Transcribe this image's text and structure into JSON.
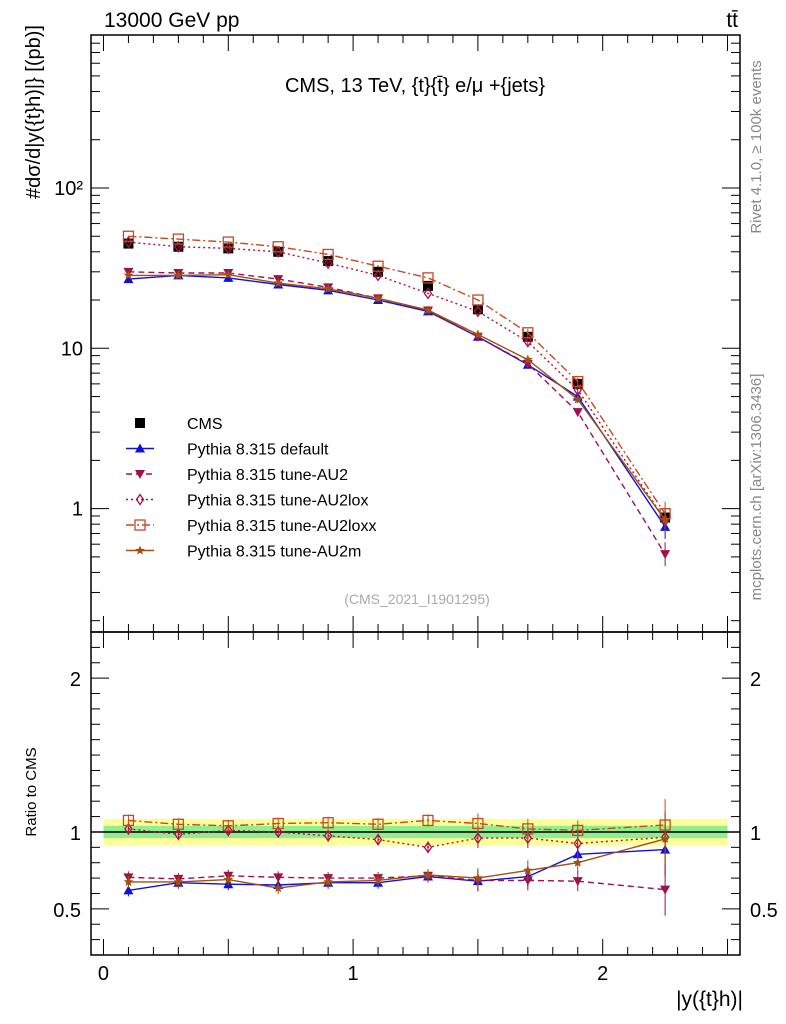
{
  "header": {
    "energy_label": "13000 GeV pp",
    "process_label": "tt̄",
    "rivet_label": "Rivet 4.1.0, ≥ 100k events",
    "mcplots_label": "mcplots.cern.ch [arXiv:1306.3436]"
  },
  "chart_data": [
    {
      "type": "line",
      "panel": "main",
      "title": "CMS, 13 TeV, {t}{t̄} e/μ +{jets}",
      "analysis_id": "(CMS_2021_I1901295)",
      "ylabel": "#dσ/d|y({t}h)|} [(pb)]",
      "yscale": "log",
      "ylim": [
        0.17,
        900
      ],
      "xlim": [
        -0.05,
        2.55
      ],
      "y_ticks": [
        1,
        10,
        100
      ],
      "y_tick_labels": [
        "1",
        "10",
        "10²"
      ],
      "x": [
        0.1,
        0.3,
        0.5,
        0.7,
        0.9,
        1.1,
        1.3,
        1.5,
        1.7,
        1.9,
        2.25
      ],
      "legend": [
        "CMS",
        "Pythia 8.315 default",
        "Pythia 8.315 tune-AU2",
        "Pythia 8.315 tune-AU2lox",
        "Pythia 8.315 tune-AU2loxx",
        "Pythia 8.315 tune-AU2m"
      ],
      "series": [
        {
          "name": "CMS",
          "color": "#000000",
          "marker": "square",
          "line": "none",
          "values": [
            45,
            43,
            42,
            40,
            35,
            30,
            24.5,
            17.5,
            11.8,
            6.0,
            0.88
          ]
        },
        {
          "name": "Pythia 8.315 default",
          "color": "#1010dd",
          "marker": "triangle-up",
          "line": "solid",
          "values": [
            27,
            28.5,
            27.5,
            25,
            23,
            20,
            17,
            11.8,
            7.9,
            5.0,
            0.77
          ]
        },
        {
          "name": "Pythia 8.315 tune-AU2",
          "color": "#a0104a",
          "marker": "triangle-down",
          "line": "dashed",
          "values": [
            30,
            29.5,
            29.5,
            27,
            24,
            20.5,
            17.2,
            11.8,
            8.0,
            4.0,
            0.52
          ]
        },
        {
          "name": "Pythia 8.315 tune-AU2lox",
          "color": "#b01040",
          "marker": "diamond-open",
          "line": "dotted",
          "values": [
            46,
            43,
            42,
            40,
            34,
            28.5,
            22,
            17,
            11,
            5.5,
            0.85
          ]
        },
        {
          "name": "Pythia 8.315 tune-AU2loxx",
          "color": "#c84820",
          "marker": "square-open",
          "line": "dashdot",
          "values": [
            50,
            48,
            46,
            43,
            38.5,
            32.5,
            27.5,
            20,
            12.5,
            6.2,
            0.93
          ]
        },
        {
          "name": "Pythia 8.315 tune-AU2m",
          "color": "#a05010",
          "marker": "star",
          "line": "solid",
          "values": [
            28.5,
            28.5,
            28.8,
            25.5,
            23.5,
            20.5,
            17.3,
            12.2,
            8.5,
            4.8,
            0.85
          ]
        }
      ]
    },
    {
      "type": "line",
      "panel": "ratio",
      "ylabel": "Ratio to CMS",
      "xlabel": "|y({t}h)|",
      "ylim": [
        0.2,
        2.3
      ],
      "xlim": [
        -0.05,
        2.55
      ],
      "y_ticks": [
        0.5,
        1,
        2
      ],
      "y_tick_labels": [
        "0.5",
        "1",
        "2"
      ],
      "x_ticks": [
        0,
        1,
        2
      ],
      "x_tick_labels": [
        "0",
        "1",
        "2"
      ],
      "band_inner_halfwidth": 0.04,
      "band_outer_halfwidth": 0.085,
      "x": [
        0.1,
        0.3,
        0.5,
        0.7,
        0.9,
        1.1,
        1.3,
        1.5,
        1.7,
        1.9,
        2.25
      ],
      "series": [
        {
          "name": "Pythia 8.315 default",
          "values": [
            0.62,
            0.67,
            0.66,
            0.655,
            0.67,
            0.67,
            0.71,
            0.68,
            0.71,
            0.855,
            0.885
          ]
        },
        {
          "name": "Pythia 8.315 tune-AU2",
          "values": [
            0.705,
            0.695,
            0.715,
            0.705,
            0.7,
            0.7,
            0.715,
            0.685,
            0.685,
            0.68,
            0.625
          ]
        },
        {
          "name": "Pythia 8.315 tune-AU2lox",
          "values": [
            1.02,
            0.985,
            1.01,
            1.0,
            0.975,
            0.95,
            0.9,
            0.96,
            0.96,
            0.925,
            0.965
          ]
        },
        {
          "name": "Pythia 8.315 tune-AU2loxx",
          "values": [
            1.075,
            1.05,
            1.04,
            1.055,
            1.06,
            1.05,
            1.075,
            1.055,
            1.02,
            1.01,
            1.045
          ]
        },
        {
          "name": "Pythia 8.315 tune-AU2m",
          "values": [
            0.675,
            0.675,
            0.69,
            0.635,
            0.675,
            0.685,
            0.72,
            0.7,
            0.75,
            0.8,
            0.955
          ]
        }
      ]
    }
  ]
}
